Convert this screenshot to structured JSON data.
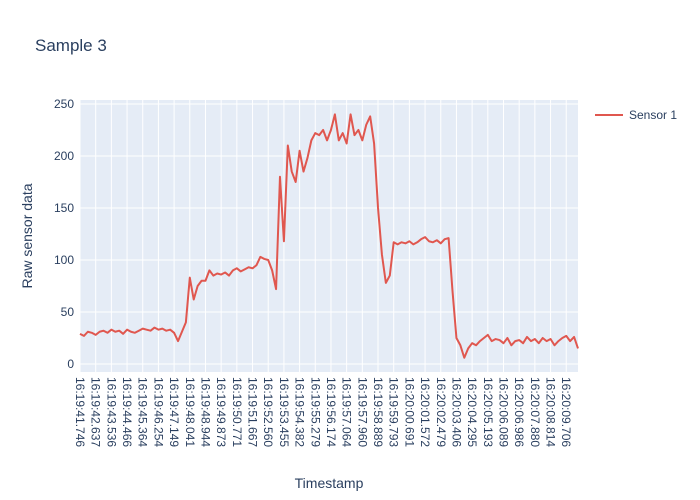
{
  "chart_data": {
    "type": "line",
    "title": "Sample 3",
    "x_label": "Timestamp",
    "y_label": "Raw sensor data",
    "categories": [
      "16:19:41.746",
      null,
      null,
      null,
      "16:19:42.637",
      null,
      null,
      null,
      "16:19:43.536",
      null,
      null,
      null,
      "16:19:44.466",
      null,
      null,
      null,
      "16:19:45.364",
      null,
      null,
      null,
      "16:19:46.254",
      null,
      null,
      null,
      "16:19:47.149",
      null,
      null,
      null,
      "16:19:48.041",
      null,
      null,
      null,
      "16:19:48.944",
      null,
      null,
      null,
      "16:19:49.873",
      null,
      null,
      null,
      "16:19:50.771",
      null,
      null,
      null,
      "16:19:51.667",
      null,
      null,
      null,
      "16:19:52.560",
      null,
      null,
      null,
      "16:19:53.455",
      null,
      null,
      null,
      "16:19:54.382",
      null,
      null,
      null,
      "16:19:55.279",
      null,
      null,
      null,
      "16:19:56.174",
      null,
      null,
      null,
      "16:19:57.064",
      null,
      null,
      null,
      "16:19:57.960",
      null,
      null,
      null,
      "16:19:58.889",
      null,
      null,
      null,
      "16:19:59.793",
      null,
      null,
      null,
      "16:20:00.691",
      null,
      null,
      null,
      "16:20:01.572",
      null,
      null,
      null,
      "16:20:02.479",
      null,
      null,
      null,
      "16:20:03.406",
      null,
      null,
      null,
      "16:20:04.295",
      null,
      null,
      null,
      "16:20:05.193",
      null,
      null,
      null,
      "16:20:06.089",
      null,
      null,
      null,
      "16:20:06.986",
      null,
      null,
      null,
      "16:20:07.880",
      null,
      null,
      null,
      "16:20:08.814",
      null,
      null,
      null,
      "16:20:09.706",
      null,
      null,
      null
    ],
    "series": [
      {
        "name": "Sensor 1",
        "color": "#e0574f",
        "values": [
          29,
          27,
          31,
          30,
          28,
          31,
          32,
          30,
          33,
          31,
          32,
          29,
          33,
          31,
          30,
          32,
          34,
          33,
          32,
          35,
          33,
          34,
          32,
          33,
          30,
          22,
          31,
          40,
          83,
          62,
          75,
          80,
          80,
          90,
          85,
          87,
          86,
          88,
          85,
          90,
          92,
          89,
          91,
          93,
          92,
          95,
          103,
          101,
          100,
          90,
          72,
          180,
          118,
          210,
          185,
          175,
          205,
          185,
          198,
          215,
          222,
          220,
          225,
          215,
          225,
          240,
          215,
          222,
          212,
          240,
          220,
          225,
          215,
          230,
          238,
          212,
          150,
          105,
          78,
          85,
          117,
          115,
          117,
          116,
          118,
          115,
          117,
          120,
          122,
          118,
          117,
          119,
          116,
          120,
          121,
          70,
          25,
          18,
          6,
          15,
          20,
          18,
          22,
          25,
          28,
          22,
          24,
          23,
          20,
          25,
          18,
          22,
          23,
          20,
          26,
          22,
          24,
          20,
          25,
          22,
          24,
          18,
          22,
          25,
          27,
          22,
          26,
          15
        ]
      }
    ],
    "ylim": [
      -7.7,
      253.8
    ],
    "yticks": [
      0,
      50,
      100,
      150,
      200,
      250
    ],
    "grid": true,
    "legend": "right"
  }
}
